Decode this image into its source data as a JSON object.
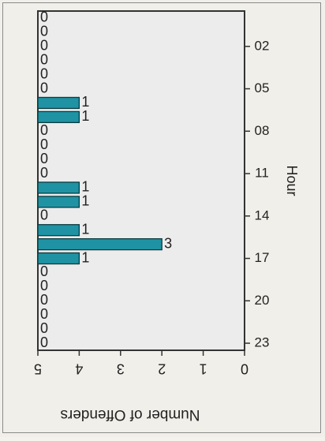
{
  "chart_data": {
    "type": "bar",
    "orientation": "rotated-90-cw",
    "xlabel": "Hour",
    "ylabel": "Number of Offenders",
    "ylim": [
      0,
      5
    ],
    "y_ticks": [
      "0",
      "1",
      "2",
      "3",
      "4",
      "5"
    ],
    "x_tick_labels": [
      "02",
      "05",
      "08",
      "11",
      "14",
      "17",
      "20",
      "23"
    ],
    "x_tick_hours": [
      2,
      5,
      8,
      11,
      14,
      17,
      20,
      23
    ],
    "categories": [
      "0",
      "1",
      "2",
      "3",
      "4",
      "5",
      "6",
      "7",
      "8",
      "9",
      "10",
      "11",
      "12",
      "13",
      "14",
      "15",
      "16",
      "17",
      "18",
      "19",
      "20",
      "21",
      "22",
      "23"
    ],
    "values": [
      0,
      0,
      0,
      0,
      0,
      0,
      1,
      1,
      0,
      0,
      0,
      0,
      1,
      1,
      0,
      1,
      3,
      1,
      0,
      0,
      0,
      0,
      0,
      0
    ],
    "value_labels": [
      "0",
      "0",
      "0",
      "0",
      "0",
      "0",
      "1",
      "1",
      "0",
      "0",
      "0",
      "0",
      "1",
      "1",
      "0",
      "1",
      "3",
      "1",
      "0",
      "0",
      "0",
      "0",
      "0",
      "0"
    ],
    "bar_color": "#1f93a3",
    "background_color": "#eeeeee",
    "grid": false
  }
}
